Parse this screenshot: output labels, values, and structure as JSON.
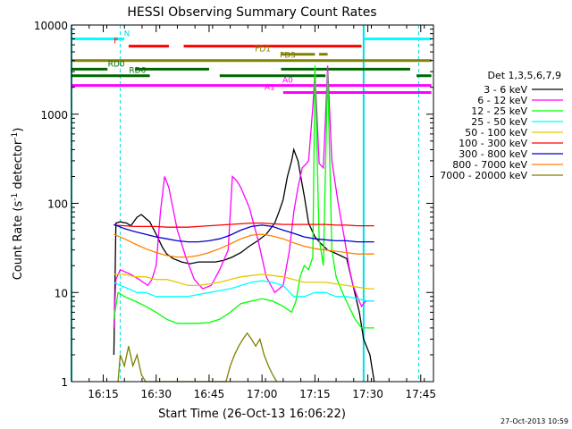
{
  "chart_data": {
    "type": "line",
    "title": "HESSI Observing Summary Count Rates",
    "xlabel": "Start Time (26-Oct-13 16:06:22)",
    "ylabel_parts": [
      "Count Rate (s",
      "-1",
      " detector",
      "-1",
      ")"
    ],
    "yscale": "log",
    "ylim": [
      1,
      10000
    ],
    "y_ticks": [
      1,
      10,
      100,
      1000,
      10000
    ],
    "y_tick_labels": [
      "1",
      "10",
      "100",
      "1000",
      "10000"
    ],
    "xlim": [
      16.1,
      17.81
    ],
    "x_ticks": [
      16.25,
      16.5,
      16.75,
      17.0,
      17.25,
      17.5,
      17.75
    ],
    "x_tick_labels": [
      "16:15",
      "16:30",
      "16:45",
      "17:00",
      "17:15",
      "17:30",
      "17:45"
    ],
    "legend_title": "Det 1,3,5,6,7,9",
    "legend_position": "right",
    "footer_date": "27-Oct-2013 10:59",
    "series": [
      {
        "name": "3 - 6 keV",
        "color": "#000000",
        "x": [
          16.3,
          16.31,
          16.33,
          16.36,
          16.38,
          16.41,
          16.43,
          16.45,
          16.47,
          16.5,
          16.53,
          16.55,
          16.58,
          16.62,
          16.66,
          16.7,
          16.74,
          16.78,
          16.82,
          16.86,
          16.9,
          16.94,
          16.98,
          17.02,
          17.06,
          17.08,
          17.1,
          17.12,
          17.14,
          17.15,
          17.17,
          17.2,
          17.22,
          17.25,
          17.28,
          17.31,
          17.34,
          17.37,
          17.4,
          17.43,
          17.46,
          17.48,
          17.51,
          17.53
        ],
        "y": [
          2,
          60,
          62,
          60,
          56,
          70,
          75,
          68,
          62,
          45,
          32,
          27,
          24,
          22,
          21,
          22,
          22,
          22,
          23,
          25,
          28,
          33,
          38,
          45,
          60,
          80,
          110,
          200,
          300,
          400,
          300,
          120,
          60,
          42,
          35,
          30,
          28,
          26,
          24,
          12,
          6,
          3,
          2,
          1
        ]
      },
      {
        "name": "6 - 12 keV",
        "color": "#ff00ff",
        "x": [
          16.3,
          16.31,
          16.33,
          16.38,
          16.42,
          16.46,
          16.48,
          16.5,
          16.52,
          16.54,
          16.56,
          16.6,
          16.64,
          16.68,
          16.72,
          16.76,
          16.8,
          16.84,
          16.86,
          16.88,
          16.9,
          16.94,
          16.98,
          17.02,
          17.06,
          17.1,
          17.13,
          17.15,
          17.17,
          17.19,
          17.21,
          17.22,
          17.24,
          17.25,
          17.27,
          17.29,
          17.31,
          17.33,
          17.36,
          17.39,
          17.41,
          17.43,
          17.45,
          17.47,
          17.49,
          17.51,
          17.53
        ],
        "y": [
          4,
          14,
          18,
          16,
          14,
          12,
          14,
          20,
          80,
          200,
          150,
          50,
          25,
          14,
          11,
          12,
          18,
          30,
          200,
          180,
          150,
          90,
          40,
          15,
          10,
          12,
          30,
          80,
          150,
          250,
          280,
          300,
          1200,
          3000,
          280,
          250,
          3500,
          300,
          100,
          40,
          20,
          12,
          9,
          7,
          8,
          8,
          8
        ]
      },
      {
        "name": "12 - 25 keV",
        "color": "#00ff00",
        "x": [
          16.3,
          16.32,
          16.35,
          16.4,
          16.45,
          16.5,
          16.55,
          16.6,
          16.65,
          16.7,
          16.75,
          16.8,
          16.85,
          16.9,
          16.95,
          17.0,
          17.05,
          17.1,
          17.14,
          17.16,
          17.18,
          17.2,
          17.22,
          17.24,
          17.25,
          17.27,
          17.29,
          17.31,
          17.33,
          17.35,
          17.38,
          17.41,
          17.44,
          17.47,
          17.5,
          17.53
        ],
        "y": [
          5,
          10,
          9,
          8,
          7,
          6,
          5,
          4.5,
          4.5,
          4.5,
          4.6,
          5,
          6,
          7.5,
          8,
          8.5,
          8,
          7,
          6,
          8,
          15,
          20,
          18,
          25,
          3500,
          40,
          20,
          3000,
          30,
          15,
          10,
          7,
          5,
          4,
          4,
          4
        ]
      },
      {
        "name": "25 - 50 keV",
        "color": "#00ffff",
        "x": [
          16.3,
          16.33,
          16.37,
          16.41,
          16.45,
          16.5,
          16.55,
          16.6,
          16.65,
          16.7,
          16.75,
          16.8,
          16.85,
          16.9,
          16.95,
          17.0,
          17.05,
          17.1,
          17.15,
          17.2,
          17.25,
          17.3,
          17.35,
          17.4,
          17.45,
          17.5,
          17.53
        ],
        "y": [
          13,
          12,
          11,
          10,
          10,
          9,
          9,
          9,
          9,
          9.5,
          10,
          10.5,
          11,
          12,
          13,
          13.5,
          13,
          12,
          9,
          9,
          10,
          10,
          9,
          9,
          8.5,
          8,
          8
        ]
      },
      {
        "name": "50 - 100 keV",
        "color": "#e6c800",
        "x": [
          16.3,
          16.35,
          16.4,
          16.45,
          16.5,
          16.55,
          16.6,
          16.65,
          16.7,
          16.75,
          16.8,
          16.85,
          16.9,
          16.95,
          17.0,
          17.05,
          17.1,
          17.15,
          17.2,
          17.25,
          17.3,
          17.35,
          17.4,
          17.45,
          17.5,
          17.53
        ],
        "y": [
          16,
          16,
          15,
          15,
          14,
          14,
          13,
          12,
          12,
          12.5,
          13,
          14,
          15,
          15.5,
          16,
          15.5,
          15,
          14,
          13,
          13,
          13,
          12.5,
          12,
          11.5,
          11,
          11
        ]
      },
      {
        "name": "100 - 300 keV",
        "color": "#ff0000",
        "x": [
          16.3,
          16.35,
          16.4,
          16.45,
          16.5,
          16.55,
          16.6,
          16.65,
          16.7,
          16.75,
          16.8,
          16.85,
          16.9,
          16.95,
          17.0,
          17.05,
          17.1,
          17.15,
          17.2,
          17.25,
          17.3,
          17.35,
          17.4,
          17.45,
          17.5,
          17.53
        ],
        "y": [
          57,
          56,
          55,
          55,
          55,
          54,
          54,
          54,
          55,
          56,
          57,
          58,
          59,
          60,
          60,
          59,
          58,
          58,
          58,
          58,
          58,
          57,
          57,
          56,
          56,
          56
        ]
      },
      {
        "name": "300 - 800 keV",
        "color": "#0000cc",
        "x": [
          16.3,
          16.35,
          16.4,
          16.45,
          16.5,
          16.55,
          16.6,
          16.65,
          16.7,
          16.75,
          16.8,
          16.85,
          16.9,
          16.95,
          17.0,
          17.05,
          17.1,
          17.15,
          17.2,
          17.25,
          17.3,
          17.35,
          17.4,
          17.45,
          17.5,
          17.53
        ],
        "y": [
          58,
          52,
          48,
          45,
          42,
          40,
          38,
          37,
          37,
          38,
          40,
          44,
          50,
          55,
          57,
          55,
          50,
          46,
          42,
          40,
          39,
          38,
          38,
          37,
          37,
          37
        ]
      },
      {
        "name": "800 - 7000 keV",
        "color": "#ff8000",
        "x": [
          16.3,
          16.35,
          16.4,
          16.45,
          16.5,
          16.55,
          16.6,
          16.65,
          16.7,
          16.75,
          16.8,
          16.85,
          16.9,
          16.95,
          17.0,
          17.05,
          17.1,
          17.15,
          17.2,
          17.25,
          17.3,
          17.35,
          17.4,
          17.45,
          17.5,
          17.53
        ],
        "y": [
          45,
          40,
          35,
          31,
          28,
          26,
          25,
          25,
          26,
          28,
          31,
          35,
          40,
          44,
          45,
          43,
          40,
          36,
          33,
          31,
          30,
          29,
          28,
          27,
          27,
          27
        ]
      },
      {
        "name": "7000 - 20000 keV",
        "color": "#808000",
        "x": [
          16.32,
          16.33,
          16.35,
          16.37,
          16.39,
          16.41,
          16.43,
          16.45,
          16.83,
          16.85,
          16.87,
          16.89,
          16.91,
          16.93,
          16.95,
          16.97,
          16.99,
          17.01,
          17.03,
          17.05,
          17.07
        ],
        "y": [
          1,
          2,
          1.5,
          2.5,
          1.5,
          2,
          1.2,
          1,
          1,
          1.5,
          2,
          2.5,
          3,
          3.5,
          3,
          2.5,
          3,
          2,
          1.5,
          1.2,
          1
        ]
      }
    ],
    "observing_flags": [
      {
        "label": "N",
        "label_color": "#00dddd",
        "line_color": "#00ffff",
        "y": 7000,
        "segments": [
          [
            16.1,
            16.35
          ],
          [
            17.48,
            17.8
          ]
        ]
      },
      {
        "label": "F",
        "label_color": "#ff0000",
        "line_color": "#ff0000",
        "y": 5800,
        "segments": [
          [
            16.37,
            16.56
          ],
          [
            16.63,
            17.47
          ]
        ]
      },
      {
        "label": "FD1",
        "label_color": "#808000",
        "line_color": "#808000",
        "y": 4700,
        "segments": [
          [
            17.09,
            17.25
          ],
          [
            17.27,
            17.31
          ]
        ]
      },
      {
        "label": "FD3",
        "label_color": "#808000",
        "line_color": "#808000",
        "y": 4000,
        "segments": [
          [
            16.1,
            17.8
          ]
        ]
      },
      {
        "label": "RD0",
        "label_color": "#006600",
        "line_color": "#006600",
        "y": 3200,
        "segments": [
          [
            16.1,
            16.27
          ],
          [
            16.4,
            16.75
          ],
          [
            17.09,
            17.7
          ]
        ]
      },
      {
        "label": "RD6",
        "label_color": "#006600",
        "line_color": "#006600",
        "y": 2700,
        "segments": [
          [
            16.1,
            16.47
          ],
          [
            16.8,
            17.3
          ],
          [
            17.73,
            17.8
          ]
        ]
      },
      {
        "label": "A0",
        "label_color": "#ff00ff",
        "line_color": "#ff00ff",
        "y": 2100,
        "segments": [
          [
            16.1,
            17.8
          ]
        ]
      },
      {
        "label": "A1",
        "label_color": "#ff00ff",
        "line_color": "#ff00ff",
        "y": 1750,
        "segments": [
          [
            17.1,
            17.8
          ]
        ]
      }
    ],
    "night_markers": [
      16.1,
      16.33,
      17.48,
      17.74
    ]
  }
}
